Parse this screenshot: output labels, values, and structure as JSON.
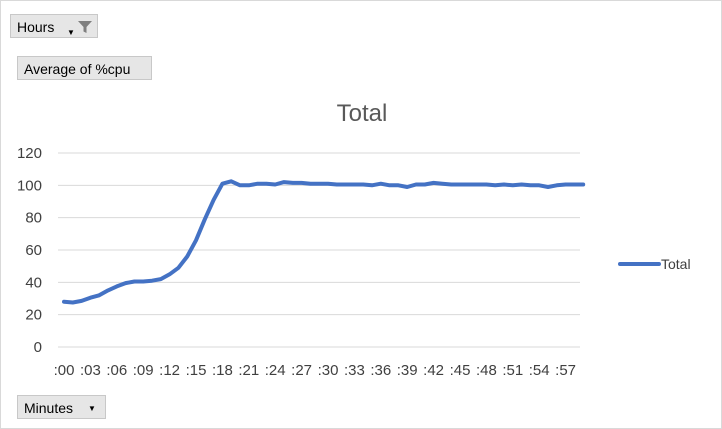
{
  "pivot": {
    "filter_field": {
      "label": "Hours",
      "icon": "filter-icon"
    },
    "values_field": {
      "label": "Average of %cpu"
    },
    "axis_field": {
      "label": "Minutes"
    }
  },
  "colors": {
    "series": "#4472c4",
    "gridline": "#d9d9d9",
    "text": "#404040",
    "title": "#595959"
  },
  "chart_data": {
    "type": "line",
    "title": "Total",
    "xlabel": "",
    "ylabel": "",
    "ylim": [
      0,
      120
    ],
    "yticks": [
      0,
      20,
      40,
      60,
      80,
      100,
      120
    ],
    "grid": true,
    "legend": "right",
    "x_tick_labels": [
      ":00",
      ":03",
      ":06",
      ":09",
      ":12",
      ":15",
      ":18",
      ":21",
      ":24",
      ":27",
      ":30",
      ":33",
      ":36",
      ":39",
      ":42",
      ":45",
      ":48",
      ":51",
      ":54",
      ":57"
    ],
    "series": [
      {
        "name": "Total",
        "values": [
          28,
          27.5,
          28.5,
          30.5,
          32,
          35,
          37.5,
          39.5,
          40.5,
          40.5,
          41,
          42,
          45,
          49,
          56,
          66,
          79,
          91,
          101,
          102.5,
          100,
          100,
          101,
          101,
          100.5,
          102,
          101.5,
          101.5,
          101,
          101,
          101,
          100.5,
          100.5,
          100.5,
          100.5,
          100,
          101,
          100,
          100,
          99,
          100.5,
          100.5,
          101.5,
          101,
          100.5,
          100.5,
          100.5,
          100.5,
          100.5,
          100,
          100.5,
          100,
          100.5,
          100,
          100,
          99,
          100,
          100.5,
          100.5,
          100.5
        ]
      }
    ]
  }
}
